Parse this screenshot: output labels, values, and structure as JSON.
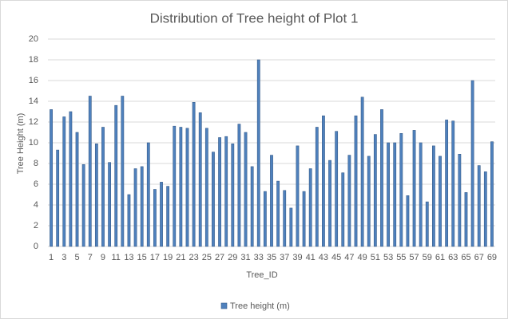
{
  "chart_data": {
    "type": "bar",
    "title": "Distribution of Tree height of  Plot 1",
    "x_label": "Tree_ID",
    "y_label": "Tree Height (m)",
    "categories": [
      "1",
      null,
      "3",
      null,
      "5",
      null,
      "7",
      null,
      "9",
      null,
      "11",
      null,
      "13",
      null,
      "15",
      null,
      "17",
      null,
      "19",
      null,
      "21",
      null,
      "23",
      null,
      "25",
      null,
      "27",
      null,
      "29",
      null,
      "31",
      null,
      "33",
      null,
      "35",
      null,
      "37",
      null,
      "39",
      null,
      "41",
      null,
      "43",
      null,
      "45",
      null,
      "47",
      null,
      "49",
      null,
      "51",
      null,
      "53",
      null,
      "55",
      null,
      "57",
      null,
      "59",
      null,
      "61",
      null,
      "63",
      null,
      "65",
      null,
      "67",
      null,
      "69"
    ],
    "series": [
      {
        "name": "Tree height (m)",
        "color": "#4f81bd",
        "values": [
          13.2,
          9.3,
          12.5,
          13.0,
          11.0,
          7.9,
          14.5,
          9.9,
          11.5,
          8.1,
          13.6,
          14.5,
          5.0,
          7.5,
          7.7,
          10.0,
          5.5,
          6.2,
          5.8,
          11.6,
          11.5,
          11.4,
          13.9,
          12.9,
          11.4,
          9.1,
          10.5,
          10.6,
          9.9,
          11.8,
          11.0,
          7.7,
          18.0,
          5.3,
          8.8,
          6.3,
          5.4,
          3.7,
          9.7,
          5.3,
          7.5,
          11.5,
          12.6,
          8.3,
          11.1,
          7.1,
          8.8,
          12.6,
          14.4,
          8.7,
          10.8,
          13.2,
          10.0,
          10.0,
          10.9,
          4.9,
          11.2,
          10.0,
          4.3,
          9.7,
          8.7,
          12.2,
          12.1,
          8.9,
          5.2,
          16.0,
          7.8,
          7.2,
          10.1
        ]
      }
    ],
    "ylim": [
      0,
      20
    ],
    "yticks": [
      0,
      2,
      4,
      6,
      8,
      10,
      12,
      14,
      16,
      18,
      20
    ],
    "grid": true,
    "legend": "bottom"
  }
}
